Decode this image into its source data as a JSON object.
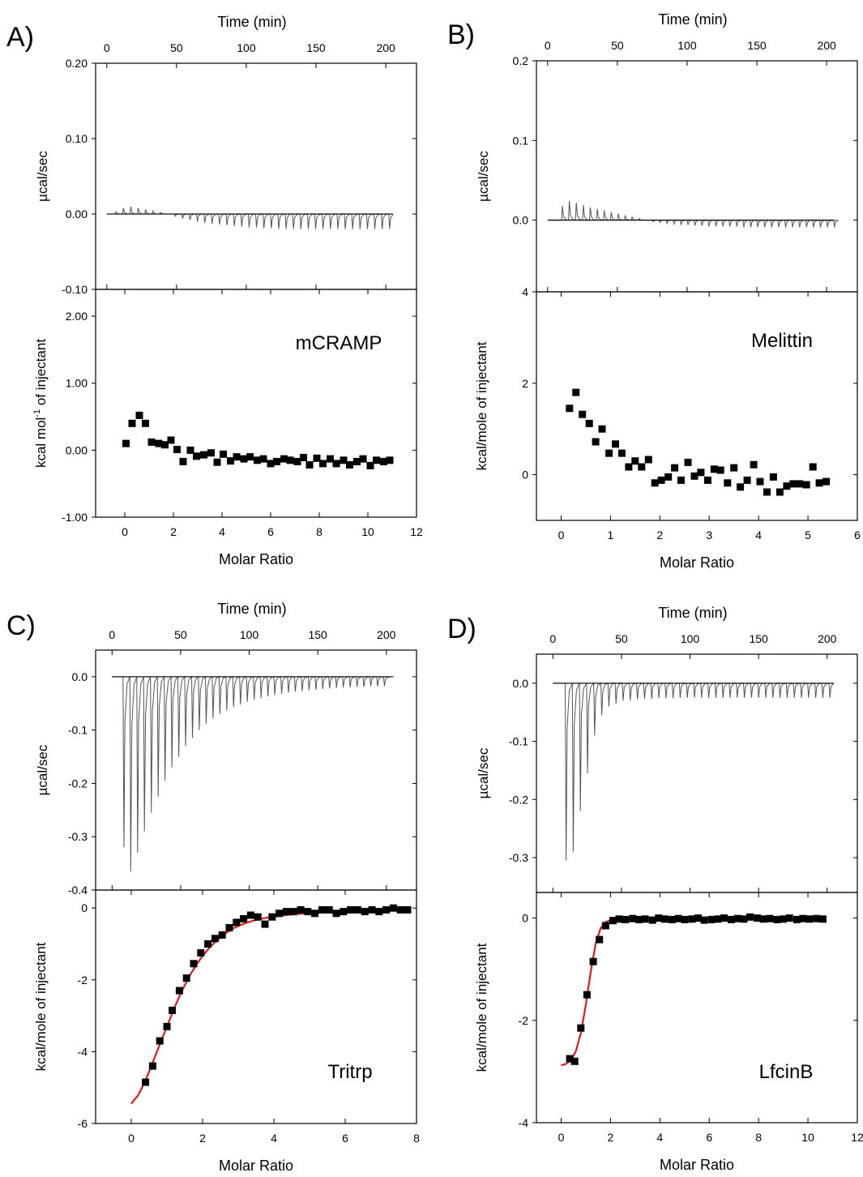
{
  "chart_data": [
    {
      "panel": "A)",
      "type": "scatter",
      "annotation": "mCRAMP",
      "top": {
        "xlabel": "Time (min)",
        "ylabel": "µcal/sec",
        "xlim": [
          -8,
          222
        ],
        "ylim": [
          -0.1,
          0.2
        ],
        "xticks": [
          0,
          50,
          100,
          150,
          200
        ],
        "yticks": [
          -0.1,
          0.0,
          0.1,
          0.2
        ],
        "ytick_labels": [
          "-0.10",
          "0.00",
          "0.10",
          "0.20"
        ],
        "trace": {
          "start": 0,
          "end": 205,
          "first_inj": 6,
          "interval": 5.3,
          "count": 38,
          "amplitudes": [
            0.003,
            0.008,
            0.01,
            0.008,
            0.006,
            0.004,
            0.002,
            0.0,
            -0.003,
            -0.006,
            -0.008,
            -0.01,
            -0.012,
            -0.013,
            -0.014,
            -0.015,
            -0.016,
            -0.017,
            -0.018,
            -0.018,
            -0.019,
            -0.019,
            -0.02,
            -0.02,
            -0.02,
            -0.02,
            -0.02,
            -0.02,
            -0.02,
            -0.02,
            -0.02,
            -0.02,
            -0.02,
            -0.02,
            -0.02,
            -0.02,
            -0.02,
            -0.02
          ]
        }
      },
      "bottom": {
        "xlabel": "Molar Ratio",
        "ylabel": "kcal mol⁻¹ of injectant",
        "xlim": [
          -1.2,
          12
        ],
        "ylim": [
          -1.0,
          2.4
        ],
        "xticks": [
          0,
          2,
          4,
          6,
          8,
          10,
          12
        ],
        "yticks": [
          -1.0,
          0.0,
          1.0,
          2.0
        ],
        "ytick_labels": [
          "-1.00",
          "0.00",
          "1.00",
          "2.00"
        ],
        "points": [
          [
            0.05,
            0.1
          ],
          [
            0.3,
            0.4
          ],
          [
            0.6,
            0.52
          ],
          [
            0.85,
            0.4
          ],
          [
            1.1,
            0.12
          ],
          [
            1.4,
            0.1
          ],
          [
            1.65,
            0.08
          ],
          [
            1.9,
            0.15
          ],
          [
            2.15,
            0.01
          ],
          [
            2.4,
            -0.17
          ],
          [
            2.7,
            0.0
          ],
          [
            2.95,
            -0.09
          ],
          [
            3.25,
            -0.07
          ],
          [
            3.55,
            -0.04
          ],
          [
            3.8,
            -0.18
          ],
          [
            4.05,
            -0.06
          ],
          [
            4.35,
            -0.16
          ],
          [
            4.6,
            -0.1
          ],
          [
            4.9,
            -0.13
          ],
          [
            5.15,
            -0.1
          ],
          [
            5.45,
            -0.15
          ],
          [
            5.7,
            -0.13
          ],
          [
            6.0,
            -0.2
          ],
          [
            6.25,
            -0.17
          ],
          [
            6.55,
            -0.13
          ],
          [
            6.8,
            -0.15
          ],
          [
            7.1,
            -0.17
          ],
          [
            7.35,
            -0.11
          ],
          [
            7.6,
            -0.22
          ],
          [
            7.9,
            -0.12
          ],
          [
            8.15,
            -0.2
          ],
          [
            8.45,
            -0.13
          ],
          [
            8.7,
            -0.2
          ],
          [
            9.0,
            -0.15
          ],
          [
            9.25,
            -0.22
          ],
          [
            9.55,
            -0.17
          ],
          [
            9.8,
            -0.13
          ],
          [
            10.1,
            -0.23
          ],
          [
            10.35,
            -0.15
          ],
          [
            10.65,
            -0.17
          ],
          [
            10.9,
            -0.15
          ]
        ]
      }
    },
    {
      "panel": "B)",
      "type": "scatter",
      "annotation": "Melittin",
      "top": {
        "xlabel": "Time (min)",
        "ylabel": "µcal/sec",
        "xlim": [
          -8,
          222
        ],
        "ylim": [
          -0.09,
          0.2
        ],
        "xticks": [
          0,
          50,
          100,
          150,
          200
        ],
        "yticks": [
          0.0,
          0.1,
          0.2
        ],
        "ytick_labels": [
          "0.0",
          "0.1",
          "0.2"
        ],
        "trace": {
          "start": 0,
          "end": 205,
          "first_inj": 10,
          "interval": 5.0,
          "count": 40,
          "amplitudes": [
            0.018,
            0.024,
            0.022,
            0.019,
            0.016,
            0.014,
            0.012,
            0.01,
            0.008,
            0.006,
            0.004,
            0.002,
            0.0,
            -0.002,
            -0.003,
            -0.004,
            -0.005,
            -0.006,
            -0.006,
            -0.007,
            -0.007,
            -0.008,
            -0.008,
            -0.008,
            -0.008,
            -0.008,
            -0.009,
            -0.009,
            -0.009,
            -0.009,
            -0.009,
            -0.009,
            -0.009,
            -0.009,
            -0.009,
            -0.009,
            -0.009,
            -0.009,
            -0.009,
            -0.009
          ]
        }
      },
      "bottom": {
        "xlabel": "Molar Ratio",
        "ylabel": "kcal/mole of injectant",
        "xlim": [
          -0.5,
          6
        ],
        "ylim": [
          -1.0,
          4.0
        ],
        "xticks": [
          0,
          1,
          2,
          3,
          4,
          5,
          6
        ],
        "yticks": [
          0,
          2,
          4
        ],
        "ytick_labels": [
          "0",
          "2",
          "4"
        ],
        "points": [
          [
            0.17,
            1.45
          ],
          [
            0.3,
            1.8
          ],
          [
            0.43,
            1.32
          ],
          [
            0.57,
            1.12
          ],
          [
            0.7,
            0.72
          ],
          [
            0.83,
            1.0
          ],
          [
            0.97,
            0.47
          ],
          [
            1.1,
            0.67
          ],
          [
            1.23,
            0.47
          ],
          [
            1.37,
            0.17
          ],
          [
            1.5,
            0.3
          ],
          [
            1.63,
            0.17
          ],
          [
            1.77,
            0.33
          ],
          [
            1.9,
            -0.18
          ],
          [
            2.03,
            -0.12
          ],
          [
            2.17,
            -0.05
          ],
          [
            2.3,
            0.15
          ],
          [
            2.43,
            -0.12
          ],
          [
            2.57,
            0.27
          ],
          [
            2.7,
            -0.03
          ],
          [
            2.83,
            0.05
          ],
          [
            2.97,
            -0.12
          ],
          [
            3.1,
            0.12
          ],
          [
            3.23,
            0.1
          ],
          [
            3.37,
            -0.18
          ],
          [
            3.5,
            0.15
          ],
          [
            3.63,
            -0.27
          ],
          [
            3.77,
            -0.12
          ],
          [
            3.9,
            0.22
          ],
          [
            4.03,
            -0.15
          ],
          [
            4.17,
            -0.38
          ],
          [
            4.3,
            -0.05
          ],
          [
            4.43,
            -0.38
          ],
          [
            4.57,
            -0.25
          ],
          [
            4.7,
            -0.2
          ],
          [
            4.83,
            -0.2
          ],
          [
            4.97,
            -0.22
          ],
          [
            5.1,
            0.17
          ],
          [
            5.23,
            -0.18
          ],
          [
            5.37,
            -0.15
          ]
        ]
      }
    },
    {
      "panel": "C)",
      "type": "scatter",
      "annotation": "Tritrp",
      "top": {
        "xlabel": "Time (min)",
        "ylabel": "µcal/sec",
        "xlim": [
          -12,
          222
        ],
        "ylim": [
          -0.4,
          0.05
        ],
        "xticks": [
          0,
          50,
          100,
          150,
          200
        ],
        "yticks": [
          -0.4,
          -0.3,
          -0.2,
          -0.1,
          0.0
        ],
        "ytick_labels": [
          "-0.4",
          "-0.3",
          "-0.2",
          "-0.1",
          "0.0"
        ],
        "trace": {
          "start": 0,
          "end": 205,
          "first_inj": 8,
          "interval": 5.0,
          "count": 39,
          "amplitudes": [
            -0.32,
            -0.365,
            -0.33,
            -0.29,
            -0.255,
            -0.225,
            -0.195,
            -0.17,
            -0.15,
            -0.13,
            -0.115,
            -0.1,
            -0.088,
            -0.078,
            -0.07,
            -0.063,
            -0.057,
            -0.052,
            -0.047,
            -0.043,
            -0.04,
            -0.037,
            -0.034,
            -0.032,
            -0.03,
            -0.028,
            -0.027,
            -0.025,
            -0.024,
            -0.023,
            -0.022,
            -0.021,
            -0.02,
            -0.02,
            -0.019,
            -0.019,
            -0.018,
            -0.018,
            -0.018
          ]
        }
      },
      "bottom": {
        "xlabel": "Molar Ratio",
        "ylabel": "kcal/mole of injectant",
        "xlim": [
          -1.0,
          8
        ],
        "ylim": [
          -6.0,
          0.5
        ],
        "xticks": [
          0,
          2,
          4,
          6,
          8
        ],
        "yticks": [
          -6,
          -4,
          -2,
          0
        ],
        "ytick_labels": [
          "-6",
          "-4",
          "-2",
          "0"
        ],
        "points": [
          [
            0.4,
            -4.85
          ],
          [
            0.6,
            -4.4
          ],
          [
            0.8,
            -3.7
          ],
          [
            1.0,
            -3.3
          ],
          [
            1.15,
            -2.85
          ],
          [
            1.35,
            -2.3
          ],
          [
            1.55,
            -1.95
          ],
          [
            1.75,
            -1.55
          ],
          [
            1.95,
            -1.25
          ],
          [
            2.15,
            -1.0
          ],
          [
            2.35,
            -0.85
          ],
          [
            2.55,
            -0.75
          ],
          [
            2.75,
            -0.55
          ],
          [
            2.95,
            -0.4
          ],
          [
            3.15,
            -0.3
          ],
          [
            3.35,
            -0.2
          ],
          [
            3.55,
            -0.25
          ],
          [
            3.75,
            -0.45
          ],
          [
            3.95,
            -0.25
          ],
          [
            4.15,
            -0.15
          ],
          [
            4.35,
            -0.1
          ],
          [
            4.55,
            -0.1
          ],
          [
            4.75,
            -0.05
          ],
          [
            4.95,
            -0.1
          ],
          [
            5.15,
            -0.15
          ],
          [
            5.35,
            -0.05
          ],
          [
            5.55,
            -0.05
          ],
          [
            5.75,
            -0.15
          ],
          [
            5.95,
            -0.1
          ],
          [
            6.15,
            -0.05
          ],
          [
            6.35,
            -0.05
          ],
          [
            6.55,
            -0.1
          ],
          [
            6.75,
            -0.05
          ],
          [
            6.95,
            -0.1
          ],
          [
            7.15,
            -0.05
          ],
          [
            7.35,
            0.0
          ],
          [
            7.55,
            -0.05
          ],
          [
            7.75,
            -0.05
          ]
        ],
        "fit": {
          "color": "#e31a1c",
          "x": [
            0,
            0.2,
            0.4,
            0.6,
            0.8,
            1.0,
            1.2,
            1.4,
            1.6,
            1.8,
            2.0,
            2.2,
            2.4,
            2.6,
            2.8,
            3.0,
            3.2,
            3.4,
            3.6,
            3.8,
            4.0,
            4.5,
            5.0,
            5.5,
            6.0,
            6.5,
            7.0,
            7.5,
            7.8
          ],
          "y": [
            -5.45,
            -5.2,
            -4.8,
            -4.3,
            -3.8,
            -3.3,
            -2.8,
            -2.35,
            -1.95,
            -1.62,
            -1.33,
            -1.1,
            -0.9,
            -0.74,
            -0.6,
            -0.5,
            -0.42,
            -0.36,
            -0.31,
            -0.27,
            -0.24,
            -0.18,
            -0.14,
            -0.12,
            -0.1,
            -0.09,
            -0.08,
            -0.07,
            -0.06
          ]
        }
      }
    },
    {
      "panel": "D)",
      "type": "scatter",
      "annotation": "LfcinB",
      "top": {
        "xlabel": "Time (min)",
        "ylabel": "µcal/sec",
        "xlim": [
          -12,
          222
        ],
        "ylim": [
          -0.36,
          0.05
        ],
        "xticks": [
          0,
          50,
          100,
          150,
          200
        ],
        "yticks": [
          -0.3,
          -0.2,
          -0.1,
          0.0
        ],
        "ytick_labels": [
          "-0.3",
          "-0.2",
          "-0.1",
          "0.0"
        ],
        "trace": {
          "start": 0,
          "end": 205,
          "first_inj": 9,
          "interval": 5.2,
          "count": 38,
          "amplitudes": [
            -0.305,
            -0.29,
            -0.22,
            -0.155,
            -0.09,
            -0.055,
            -0.04,
            -0.035,
            -0.03,
            -0.03,
            -0.028,
            -0.027,
            -0.027,
            -0.026,
            -0.026,
            -0.026,
            -0.025,
            -0.025,
            -0.025,
            -0.025,
            -0.025,
            -0.025,
            -0.025,
            -0.025,
            -0.025,
            -0.025,
            -0.025,
            -0.025,
            -0.025,
            -0.025,
            -0.025,
            -0.025,
            -0.025,
            -0.025,
            -0.025,
            -0.025,
            -0.025,
            -0.025
          ]
        }
      },
      "bottom": {
        "xlabel": "Molar Ratio",
        "ylabel": "kcal/mole of injectant",
        "xlim": [
          -1.0,
          12
        ],
        "ylim": [
          -4.0,
          0.5
        ],
        "xticks": [
          0,
          2,
          4,
          6,
          8,
          10,
          12
        ],
        "yticks": [
          -4,
          -2,
          0
        ],
        "ytick_labels": [
          "-4",
          "-2",
          "0"
        ],
        "points": [
          [
            0.35,
            -2.75
          ],
          [
            0.55,
            -2.8
          ],
          [
            0.8,
            -2.15
          ],
          [
            1.05,
            -1.5
          ],
          [
            1.3,
            -0.85
          ],
          [
            1.55,
            -0.42
          ],
          [
            1.8,
            -0.15
          ],
          [
            2.1,
            -0.05
          ],
          [
            2.35,
            -0.02
          ],
          [
            2.6,
            -0.03
          ],
          [
            2.9,
            -0.01
          ],
          [
            3.15,
            -0.03
          ],
          [
            3.4,
            -0.02
          ],
          [
            3.7,
            -0.04
          ],
          [
            3.95,
            0.0
          ],
          [
            4.2,
            -0.02
          ],
          [
            4.5,
            -0.03
          ],
          [
            4.75,
            -0.01
          ],
          [
            5.0,
            -0.03
          ],
          [
            5.3,
            -0.02
          ],
          [
            5.55,
            0.0
          ],
          [
            5.8,
            -0.04
          ],
          [
            6.1,
            -0.03
          ],
          [
            6.35,
            -0.02
          ],
          [
            6.6,
            0.0
          ],
          [
            6.9,
            -0.03
          ],
          [
            7.15,
            -0.01
          ],
          [
            7.4,
            -0.02
          ],
          [
            7.65,
            0.02
          ],
          [
            7.95,
            0.0
          ],
          [
            8.2,
            -0.02
          ],
          [
            8.45,
            -0.01
          ],
          [
            8.75,
            -0.03
          ],
          [
            9.0,
            -0.02
          ],
          [
            9.25,
            0.0
          ],
          [
            9.55,
            -0.03
          ],
          [
            9.8,
            -0.01
          ],
          [
            10.05,
            -0.02
          ],
          [
            10.35,
            -0.01
          ],
          [
            10.6,
            -0.02
          ]
        ],
        "fit": {
          "color": "#e31a1c",
          "x": [
            0,
            0.2,
            0.4,
            0.6,
            0.8,
            1.0,
            1.2,
            1.4,
            1.6,
            1.8,
            2.0,
            2.3,
            2.6,
            3,
            4,
            6,
            8,
            10,
            10.6
          ],
          "y": [
            -2.88,
            -2.85,
            -2.78,
            -2.6,
            -2.25,
            -1.7,
            -1.05,
            -0.5,
            -0.2,
            -0.08,
            -0.04,
            -0.02,
            -0.02,
            -0.02,
            -0.02,
            -0.02,
            -0.02,
            -0.02,
            -0.02
          ]
        }
      }
    }
  ]
}
